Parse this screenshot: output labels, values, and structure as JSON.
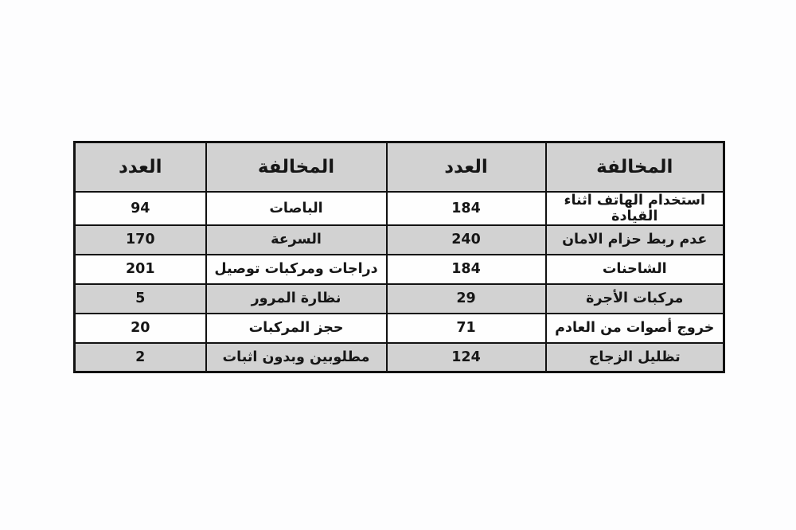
{
  "colors": {
    "page_bg": "#fdfdfe",
    "header_bg": "#d2d2d2",
    "row_bg": "#fefefe",
    "row_alt_bg": "#d2d2d2",
    "table_border": "#121212",
    "text_color": "#161616"
  },
  "chart_data": {
    "type": "table",
    "direction": "rtl",
    "title": "",
    "header_rtl": [
      "المخالفة",
      "العدد",
      "المخالفة",
      "العدد"
    ],
    "rows_rtl": [
      [
        "استخدام الهاتف اثناء القيادة",
        "184",
        "الباصات",
        "94"
      ],
      [
        "عدم ربط حزام الامان",
        "240",
        "السرعة",
        "170"
      ],
      [
        "الشاحنات",
        "184",
        "دراجات ومركبات توصيل",
        "201"
      ],
      [
        "مركبات الأجرة",
        "29",
        "نظارة المرور",
        "5"
      ],
      [
        "خروج أصوات من العادم",
        "71",
        "حجز المركبات",
        "20"
      ],
      [
        "تظليل الزجاج",
        "124",
        "مطلوبين وبدون اثبات",
        "2"
      ]
    ],
    "layout_hints": {
      "header_background": "#d2d2d2",
      "alternating_rows": true,
      "grid": true,
      "text_bold": true
    }
  }
}
